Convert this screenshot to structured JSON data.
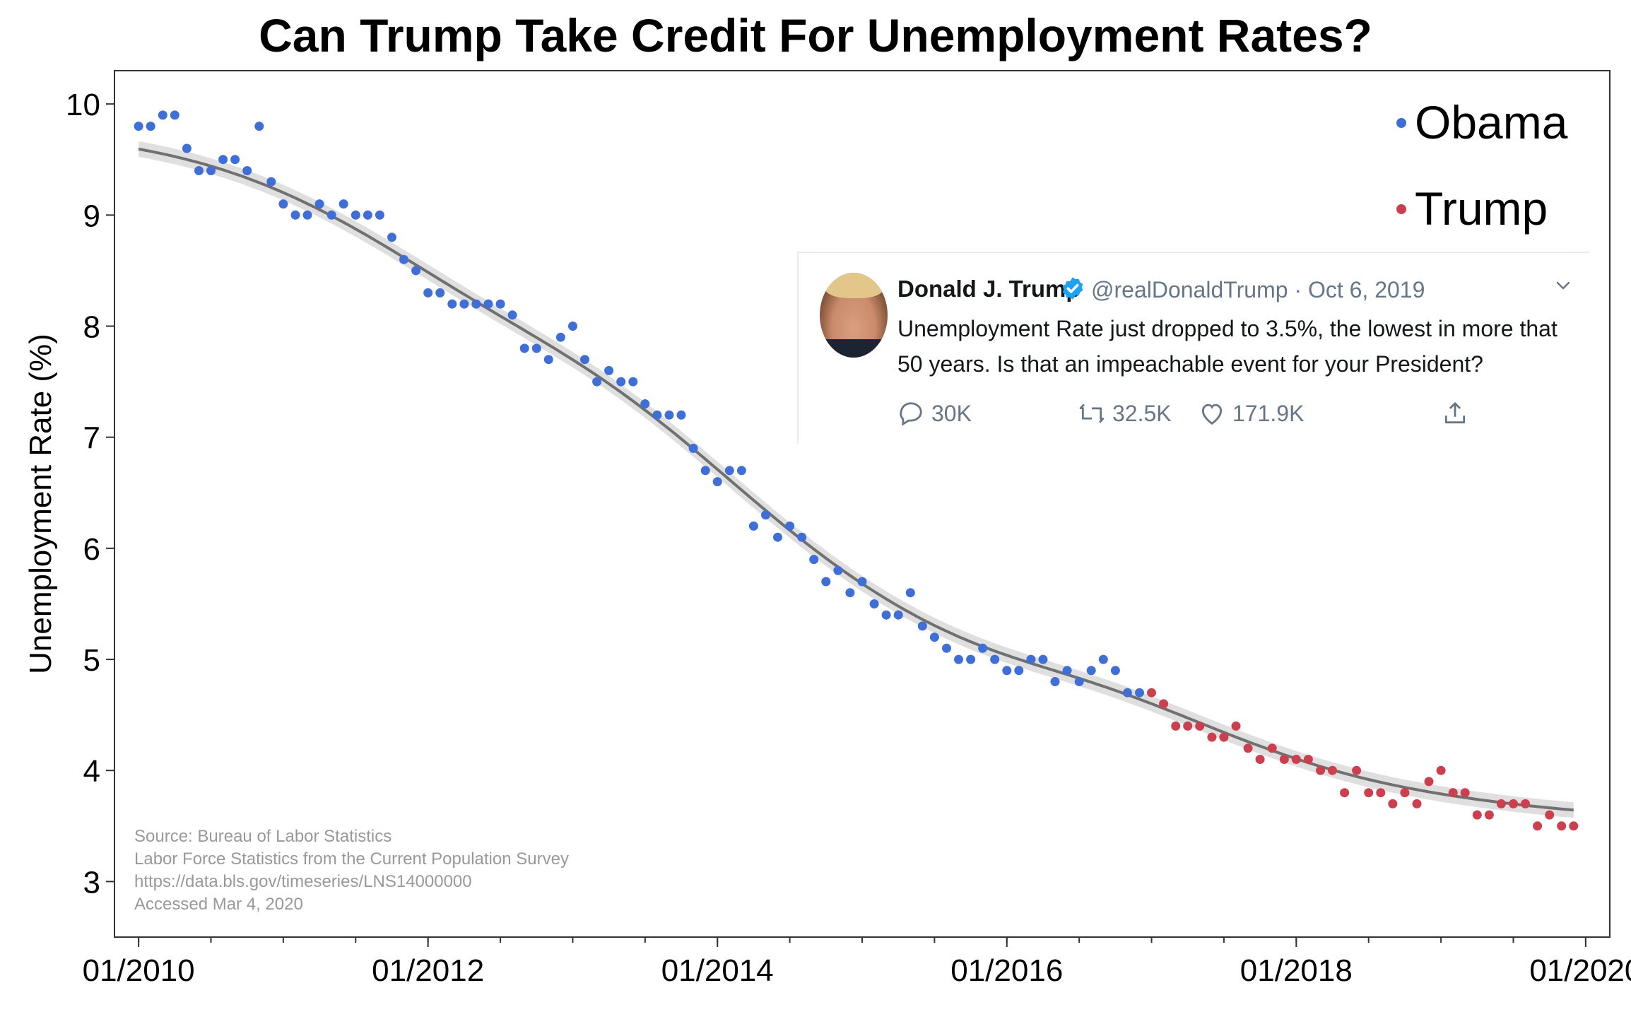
{
  "chart_data": {
    "type": "scatter",
    "title": "Can Trump Take Credit For Unemployment Rates?",
    "ylabel": "Unemployment Rate (%)",
    "xlabel": "",
    "x_ticks": [
      "01/2010",
      "01/2012",
      "01/2014",
      "01/2016",
      "01/2018",
      "01/2020"
    ],
    "y_ticks": [
      3,
      4,
      5,
      6,
      7,
      8,
      9,
      10
    ],
    "ylim": [
      2.5,
      10.3
    ],
    "xlim": [
      "2009-11",
      "2020-03"
    ],
    "grid": false,
    "legend_position": "top-right",
    "trend_line": "smoothed fit with confidence band",
    "colors": {
      "obama": "#3f6fd6",
      "trump": "#cc3f4f",
      "trend": "#707070",
      "band": "#d4d4d4"
    },
    "series": [
      {
        "name": "Obama",
        "x": [
          "2010-01",
          "2010-02",
          "2010-03",
          "2010-04",
          "2010-05",
          "2010-06",
          "2010-07",
          "2010-08",
          "2010-09",
          "2010-10",
          "2010-11",
          "2010-12",
          "2011-01",
          "2011-02",
          "2011-03",
          "2011-04",
          "2011-05",
          "2011-06",
          "2011-07",
          "2011-08",
          "2011-09",
          "2011-10",
          "2011-11",
          "2011-12",
          "2012-01",
          "2012-02",
          "2012-03",
          "2012-04",
          "2012-05",
          "2012-06",
          "2012-07",
          "2012-08",
          "2012-09",
          "2012-10",
          "2012-11",
          "2012-12",
          "2013-01",
          "2013-02",
          "2013-03",
          "2013-04",
          "2013-05",
          "2013-06",
          "2013-07",
          "2013-08",
          "2013-09",
          "2013-10",
          "2013-11",
          "2013-12",
          "2014-01",
          "2014-02",
          "2014-03",
          "2014-04",
          "2014-05",
          "2014-06",
          "2014-07",
          "2014-08",
          "2014-09",
          "2014-10",
          "2014-11",
          "2014-12",
          "2015-01",
          "2015-02",
          "2015-03",
          "2015-04",
          "2015-05",
          "2015-06",
          "2015-07",
          "2015-08",
          "2015-09",
          "2015-10",
          "2015-11",
          "2015-12",
          "2016-01",
          "2016-02",
          "2016-03",
          "2016-04",
          "2016-05",
          "2016-06",
          "2016-07",
          "2016-08",
          "2016-09",
          "2016-10",
          "2016-11",
          "2016-12"
        ],
        "values": [
          9.8,
          9.8,
          9.9,
          9.9,
          9.6,
          9.4,
          9.4,
          9.5,
          9.5,
          9.4,
          9.8,
          9.3,
          9.1,
          9.0,
          9.0,
          9.1,
          9.0,
          9.1,
          9.0,
          9.0,
          9.0,
          8.8,
          8.6,
          8.5,
          8.3,
          8.3,
          8.2,
          8.2,
          8.2,
          8.2,
          8.2,
          8.1,
          7.8,
          7.8,
          7.7,
          7.9,
          8.0,
          7.7,
          7.5,
          7.6,
          7.5,
          7.5,
          7.3,
          7.2,
          7.2,
          7.2,
          6.9,
          6.7,
          6.6,
          6.7,
          6.7,
          6.2,
          6.3,
          6.1,
          6.2,
          6.1,
          5.9,
          5.7,
          5.8,
          5.6,
          5.7,
          5.5,
          5.4,
          5.4,
          5.6,
          5.3,
          5.2,
          5.1,
          5.0,
          5.0,
          5.1,
          5.0,
          4.9,
          4.9,
          5.0,
          5.0,
          4.8,
          4.9,
          4.8,
          4.9,
          5.0,
          4.9,
          4.7,
          4.7
        ]
      },
      {
        "name": "Trump",
        "x": [
          "2017-01",
          "2017-02",
          "2017-03",
          "2017-04",
          "2017-05",
          "2017-06",
          "2017-07",
          "2017-08",
          "2017-09",
          "2017-10",
          "2017-11",
          "2017-12",
          "2018-01",
          "2018-02",
          "2018-03",
          "2018-04",
          "2018-05",
          "2018-06",
          "2018-07",
          "2018-08",
          "2018-09",
          "2018-10",
          "2018-11",
          "2018-12",
          "2019-01",
          "2019-02",
          "2019-03",
          "2019-04",
          "2019-05",
          "2019-06",
          "2019-07",
          "2019-08",
          "2019-09",
          "2019-10",
          "2019-11",
          "2019-12"
        ],
        "values": [
          4.7,
          4.6,
          4.4,
          4.4,
          4.4,
          4.3,
          4.3,
          4.4,
          4.2,
          4.1,
          4.2,
          4.1,
          4.1,
          4.1,
          4.0,
          4.0,
          3.8,
          4.0,
          3.8,
          3.8,
          3.7,
          3.8,
          3.7,
          3.9,
          4.0,
          3.8,
          3.8,
          3.6,
          3.6,
          3.7,
          3.7,
          3.7,
          3.5,
          3.6,
          3.5,
          3.5
        ]
      }
    ]
  },
  "legend": {
    "items": [
      {
        "label": "Obama",
        "color": "#3f6fd6"
      },
      {
        "label": "Trump",
        "color": "#cc3f4f"
      }
    ]
  },
  "tweet": {
    "name": "Donald J. Trump",
    "handle_date": "@realDonaldTrump · Oct 6, 2019",
    "text": "Unemployment Rate just dropped to 3.5%, the lowest in more that 50 years. Is that an impeachable event for your President?",
    "replies": "30K",
    "retweets": "32.5K",
    "likes": "171.9K",
    "icons": [
      "verified-badge-icon",
      "chevron-down-icon",
      "reply-icon",
      "retweet-icon",
      "like-icon",
      "share-icon"
    ]
  },
  "source_note": {
    "line1": "Source: Bureau of Labor Statistics",
    "line2": "Labor Force Statistics from the Current Population Survey",
    "line3": "https://data.bls.gov/timeseries/LNS14000000",
    "line4": "Accessed Mar 4, 2020"
  }
}
